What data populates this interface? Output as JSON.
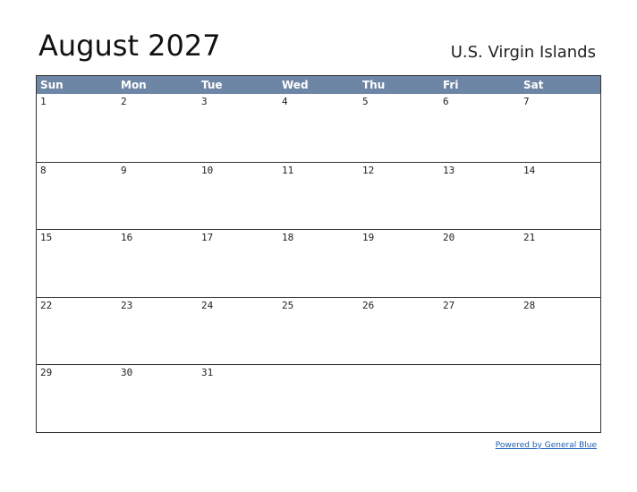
{
  "header": {
    "title": "August 2027",
    "region": "U.S. Virgin Islands"
  },
  "calendar": {
    "weekdays": [
      "Sun",
      "Mon",
      "Tue",
      "Wed",
      "Thu",
      "Fri",
      "Sat"
    ],
    "weeks": [
      [
        "1",
        "2",
        "3",
        "4",
        "5",
        "6",
        "7"
      ],
      [
        "8",
        "9",
        "10",
        "11",
        "12",
        "13",
        "14"
      ],
      [
        "15",
        "16",
        "17",
        "18",
        "19",
        "20",
        "21"
      ],
      [
        "22",
        "23",
        "24",
        "25",
        "26",
        "27",
        "28"
      ],
      [
        "29",
        "30",
        "31",
        null,
        null,
        null,
        null
      ]
    ]
  },
  "footer": {
    "link": "Powered by General Blue"
  }
}
